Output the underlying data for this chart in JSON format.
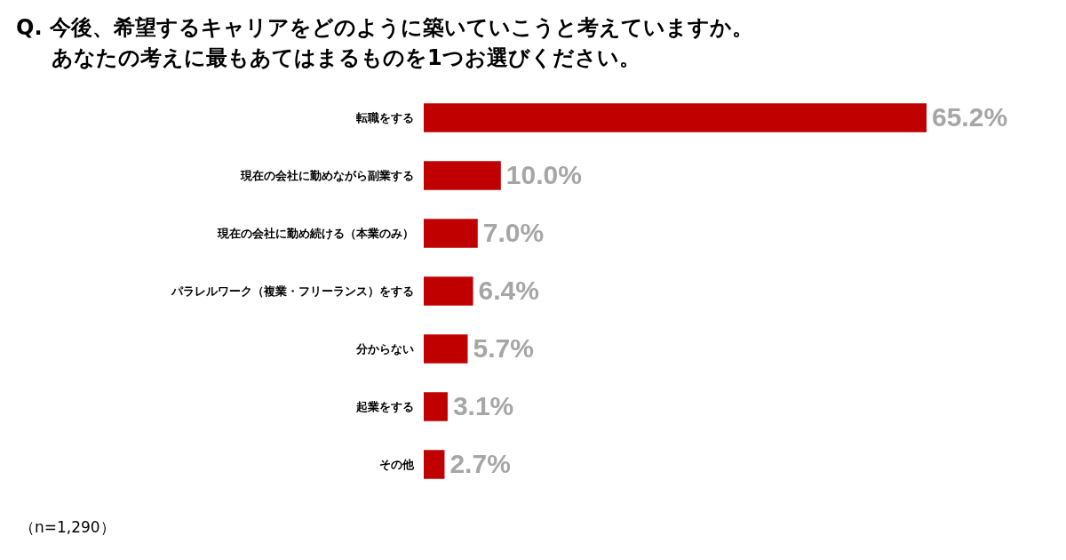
{
  "chart_data": {
    "type": "bar",
    "orientation": "horizontal",
    "title": "Q. 今後、希望するキャリアをどのように築いていこうと考えていますか。",
    "subtitle": "あなたの考えに最もあてはまるものを1つお選びください。",
    "categories": [
      "転職をする",
      "現在の会社に勤めながら副業する",
      "現在の会社に勤め続ける（本業のみ）",
      "パラレルワーク（複業・フリーランス）をする",
      "分からない",
      "起業をする",
      "その他"
    ],
    "values": [
      65.2,
      10.0,
      7.0,
      6.4,
      5.7,
      3.1,
      2.7
    ],
    "value_labels": [
      "65.2%",
      "10.0%",
      "7.0%",
      "6.4%",
      "5.7%",
      "3.1%",
      "2.7%"
    ],
    "color": "#c00000",
    "annotations": [
      "（n=1,290）"
    ]
  }
}
